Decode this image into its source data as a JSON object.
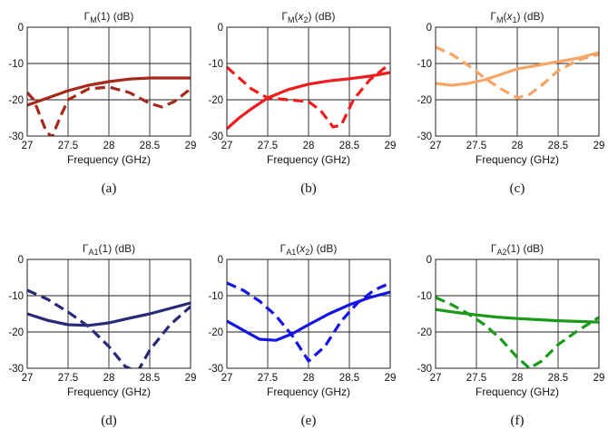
{
  "chart_data": [
    {
      "type": "line",
      "panel": "a",
      "caption": "(a)",
      "title": "Γ_M(1) (dB)",
      "title_parts": {
        "sym": "Γ",
        "sub": "M",
        "arg": "1",
        "arg_italic": false,
        "unit": "(dB)"
      },
      "xlabel": "Frequency (GHz)",
      "xlim": [
        27,
        29
      ],
      "ylim": [
        -30,
        0
      ],
      "xticks": [
        "27",
        "27.5",
        "28",
        "28.5",
        "29"
      ],
      "yticks": [
        "0",
        "-10",
        "-20",
        "-30"
      ],
      "grid": true,
      "series": [
        {
          "style": "solid",
          "color": "#a5281b",
          "x": [
            27,
            27.25,
            27.5,
            27.75,
            28,
            28.25,
            28.5,
            28.75,
            29
          ],
          "y": [
            -21.5,
            -19.5,
            -17.5,
            -16,
            -15,
            -14.3,
            -14,
            -14,
            -14
          ]
        },
        {
          "style": "dashed",
          "color": "#a5281b",
          "x": [
            27,
            27.08,
            27.15,
            27.22,
            27.3,
            27.4,
            27.5,
            27.75,
            28,
            28.25,
            28.5,
            28.65,
            28.8,
            29
          ],
          "y": [
            -18,
            -20,
            -24,
            -28,
            -30.5,
            -25,
            -20,
            -17,
            -16.5,
            -18,
            -21,
            -22,
            -20.5,
            -17
          ]
        }
      ]
    },
    {
      "type": "line",
      "panel": "b",
      "caption": "(b)",
      "title": "Γ_M(x2) (dB)",
      "title_parts": {
        "sym": "Γ",
        "sub": "M",
        "arg": "x",
        "arg_sub": "2",
        "arg_italic": true,
        "unit": "(dB)"
      },
      "xlabel": "Frequency (GHz)",
      "xlim": [
        27,
        29
      ],
      "ylim": [
        -30,
        0
      ],
      "xticks": [
        "27",
        "27.5",
        "28",
        "28.5",
        "29"
      ],
      "yticks": [
        "0",
        "-10",
        "-20",
        "-30"
      ],
      "grid": true,
      "series": [
        {
          "style": "solid",
          "color": "#ee1c1c",
          "x": [
            27,
            27.15,
            27.3,
            27.5,
            27.75,
            28,
            28.25,
            28.5,
            28.75,
            29
          ],
          "y": [
            -28,
            -25,
            -22.5,
            -19.5,
            -17.2,
            -15.7,
            -14.8,
            -14.2,
            -13.5,
            -12.5
          ]
        },
        {
          "style": "dashed",
          "color": "#ee1c1c",
          "x": [
            27,
            27.15,
            27.3,
            27.5,
            27.75,
            28,
            28.15,
            28.3,
            28.4,
            28.55,
            28.75,
            29
          ],
          "y": [
            -11,
            -14,
            -17,
            -19.5,
            -20,
            -20.5,
            -23,
            -27.5,
            -27,
            -20,
            -14.5,
            -10
          ]
        }
      ]
    },
    {
      "type": "line",
      "panel": "c",
      "caption": "(c)",
      "title": "Γ_M(x1) (dB)",
      "title_parts": {
        "sym": "Γ",
        "sub": "M",
        "arg": "x",
        "arg_sub": "1",
        "arg_italic": true,
        "unit": "(dB)"
      },
      "xlabel": "Frequency (GHz)",
      "xlim": [
        27,
        29
      ],
      "ylim": [
        -30,
        0
      ],
      "xticks": [
        "27",
        "27.5",
        "28",
        "28.5",
        "29"
      ],
      "yticks": [
        "0",
        "-10",
        "-20",
        "-30"
      ],
      "grid": true,
      "series": [
        {
          "style": "solid",
          "color": "#f7a465",
          "x": [
            27,
            27.2,
            27.4,
            27.6,
            27.8,
            28,
            28.25,
            28.5,
            28.75,
            29
          ],
          "y": [
            -15.5,
            -16,
            -15.5,
            -14.5,
            -13,
            -11.5,
            -10.5,
            -9.5,
            -8.5,
            -7
          ]
        },
        {
          "style": "dashed",
          "color": "#f7a465",
          "x": [
            27,
            27.2,
            27.4,
            27.6,
            27.8,
            28,
            28.15,
            28.3,
            28.5,
            28.75,
            29
          ],
          "y": [
            -5.5,
            -7.5,
            -10.5,
            -14,
            -17,
            -19.5,
            -18.5,
            -16,
            -12,
            -9,
            -7.5
          ]
        }
      ]
    },
    {
      "type": "line",
      "panel": "d",
      "caption": "(d)",
      "title": "Γ_A1(1) (dB)",
      "title_parts": {
        "sym": "Γ",
        "sub": "A1",
        "arg": "1",
        "arg_italic": false,
        "unit": "(dB)"
      },
      "xlabel": "Frequency (GHz)",
      "xlim": [
        27,
        29
      ],
      "ylim": [
        -30,
        0
      ],
      "xticks": [
        "27",
        "27.5",
        "28",
        "28.5",
        "29"
      ],
      "yticks": [
        "0",
        "-10",
        "-20",
        "-30"
      ],
      "grid": true,
      "series": [
        {
          "style": "solid",
          "color": "#27297a",
          "x": [
            27,
            27.25,
            27.5,
            27.75,
            28,
            28.25,
            28.5,
            28.75,
            29
          ],
          "y": [
            -15,
            -16.8,
            -18,
            -18.2,
            -17.5,
            -16.2,
            -15,
            -13.5,
            -12
          ]
        },
        {
          "style": "dashed",
          "color": "#27297a",
          "x": [
            27,
            27.25,
            27.5,
            27.75,
            28,
            28.2,
            28.35,
            28.5,
            28.75,
            29
          ],
          "y": [
            -8.5,
            -11,
            -14.5,
            -18.5,
            -24,
            -29.5,
            -31,
            -25,
            -18,
            -13
          ]
        }
      ]
    },
    {
      "type": "line",
      "panel": "e",
      "caption": "(e)",
      "title": "Γ_A1(x2) (dB)",
      "title_parts": {
        "sym": "Γ",
        "sub": "A1",
        "arg": "x",
        "arg_sub": "2",
        "arg_italic": true,
        "unit": "(dB)"
      },
      "xlabel": "Frequency (GHz)",
      "xlim": [
        27,
        29
      ],
      "ylim": [
        -30,
        0
      ],
      "xticks": [
        "27",
        "27.5",
        "28",
        "28.5",
        "29"
      ],
      "yticks": [
        "0",
        "-10",
        "-20",
        "-30"
      ],
      "grid": true,
      "series": [
        {
          "style": "solid",
          "color": "#1414e6",
          "x": [
            27,
            27.2,
            27.4,
            27.6,
            27.8,
            28,
            28.25,
            28.5,
            28.75,
            29
          ],
          "y": [
            -17,
            -19.5,
            -22,
            -22.3,
            -20.5,
            -18,
            -15,
            -12.5,
            -10.5,
            -9
          ]
        },
        {
          "style": "dashed",
          "color": "#1414e6",
          "x": [
            27,
            27.2,
            27.4,
            27.6,
            27.8,
            28,
            28.2,
            28.4,
            28.6,
            28.8,
            29
          ],
          "y": [
            -6.5,
            -8.5,
            -11.5,
            -15.5,
            -21,
            -28,
            -24,
            -17,
            -12,
            -8.5,
            -6.5
          ]
        }
      ]
    },
    {
      "type": "line",
      "panel": "f",
      "caption": "(f)",
      "title": "Γ_A2(1) (dB)",
      "title_parts": {
        "sym": "Γ",
        "sub": "A2",
        "arg": "1",
        "arg_italic": false,
        "unit": "(dB)"
      },
      "xlabel": "Frequency (GHz)",
      "xlim": [
        27,
        29
      ],
      "ylim": [
        -30,
        0
      ],
      "xticks": [
        "27",
        "27.5",
        "28",
        "28.5",
        "29"
      ],
      "yticks": [
        "0",
        "-10",
        "-20",
        "-30"
      ],
      "grid": true,
      "series": [
        {
          "style": "solid",
          "color": "#199a19",
          "x": [
            27,
            27.25,
            27.5,
            27.75,
            28,
            28.25,
            28.5,
            28.75,
            29
          ],
          "y": [
            -13.8,
            -14.6,
            -15.3,
            -15.9,
            -16.3,
            -16.6,
            -16.9,
            -17.1,
            -17.3
          ]
        },
        {
          "style": "dashed",
          "color": "#199a19",
          "x": [
            27,
            27.2,
            27.4,
            27.6,
            27.8,
            28,
            28.15,
            28.3,
            28.5,
            28.75,
            29
          ],
          "y": [
            -10.5,
            -12.5,
            -15,
            -18,
            -22,
            -27,
            -30,
            -28,
            -23.5,
            -19.5,
            -16
          ]
        }
      ]
    }
  ]
}
